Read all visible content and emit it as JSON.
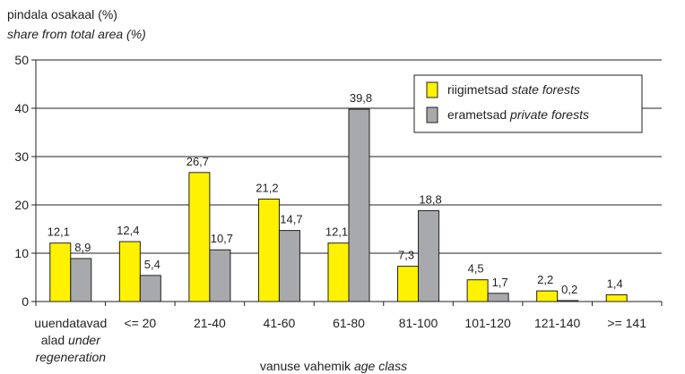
{
  "chart_data": {
    "type": "bar",
    "ylabel_line1": "pindala osakaal (%)",
    "ylabel_line2": "share from total area (%)",
    "xlabel_main": "vanuse vahemik",
    "xlabel_italic": "age class",
    "ylim": [
      0,
      50
    ],
    "yticks": [
      "0",
      "10",
      "20",
      "30",
      "40",
      "50"
    ],
    "categories": [
      [
        "uuendatavad",
        "alad",
        "regeneration"
      ],
      [
        "<= 20"
      ],
      [
        "21-40"
      ],
      [
        "41-60"
      ],
      [
        "61-80"
      ],
      [
        "81-100"
      ],
      [
        "101-120"
      ],
      [
        "121-140"
      ],
      [
        ">= 141"
      ]
    ],
    "category_first_italic": "under",
    "series": [
      {
        "name": "riigimetsad",
        "name_italic": "state forests",
        "color": "#fff200",
        "values": [
          12.1,
          12.4,
          26.7,
          21.2,
          12.1,
          7.3,
          4.5,
          2.2,
          1.4
        ],
        "labels": [
          "12,1",
          "12,4",
          "26,7",
          "21,2",
          "12,1",
          "7,3",
          "4,5",
          "2,2",
          "1,4"
        ]
      },
      {
        "name": "erametsad",
        "name_italic": "private forests",
        "color": "#a7a9ac",
        "values": [
          8.9,
          5.4,
          10.7,
          14.7,
          39.8,
          18.8,
          1.7,
          0.2,
          null
        ],
        "labels": [
          "8,9",
          "5,4",
          "10,7",
          "14,7",
          "39,8",
          "18,8",
          "1,7",
          "0,2",
          ""
        ]
      }
    ],
    "legend_position": "top-right",
    "grid": true
  }
}
